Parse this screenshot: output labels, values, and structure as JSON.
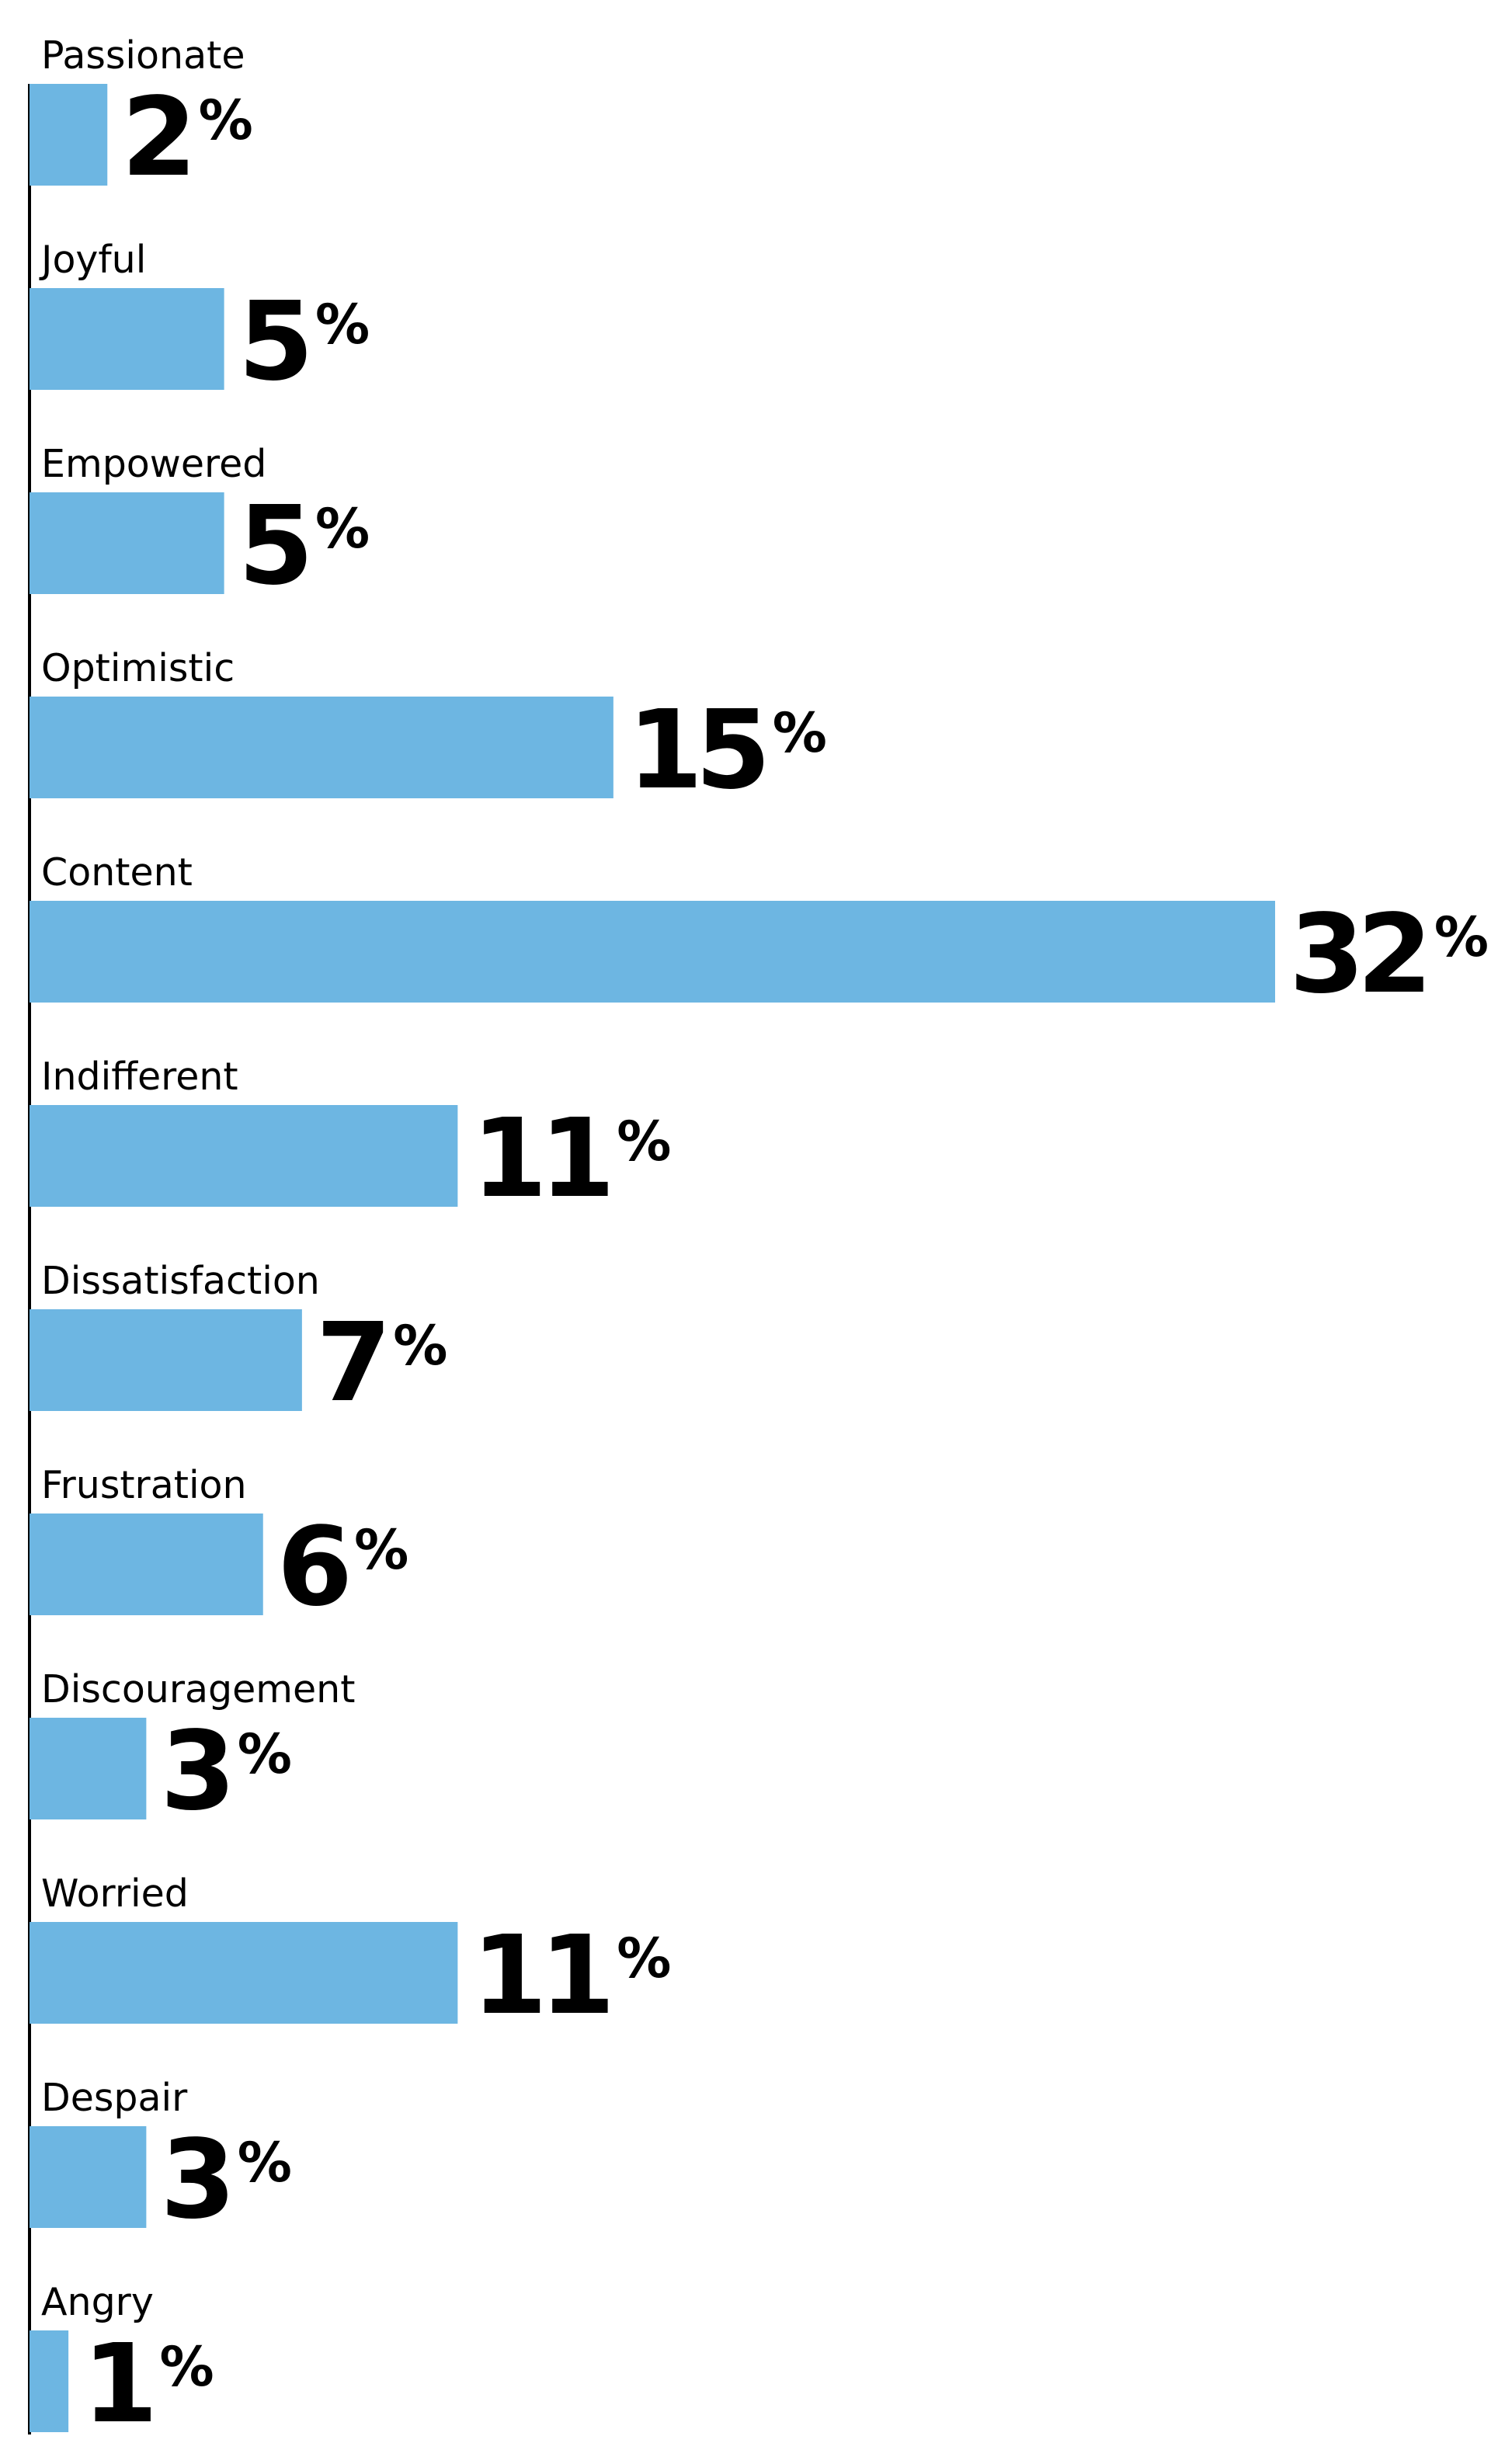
{
  "chart_data": {
    "type": "bar",
    "orientation": "horizontal",
    "categories": [
      "Passionate",
      "Joyful",
      "Empowered",
      "Optimistic",
      "Content",
      "Indifferent",
      "Dissatisfaction",
      "Frustration",
      "Discouragement",
      "Worried",
      "Despair",
      "Angry"
    ],
    "values": [
      2,
      5,
      5,
      15,
      32,
      11,
      7,
      6,
      3,
      11,
      3,
      1
    ],
    "unit": "%",
    "title": "",
    "xlabel": "",
    "ylabel": "",
    "xlim": [
      0,
      32
    ],
    "grid": false,
    "legend": "none",
    "bar_color": "#6db6e2",
    "text_color": "#000000",
    "axis_color": "#000000"
  }
}
